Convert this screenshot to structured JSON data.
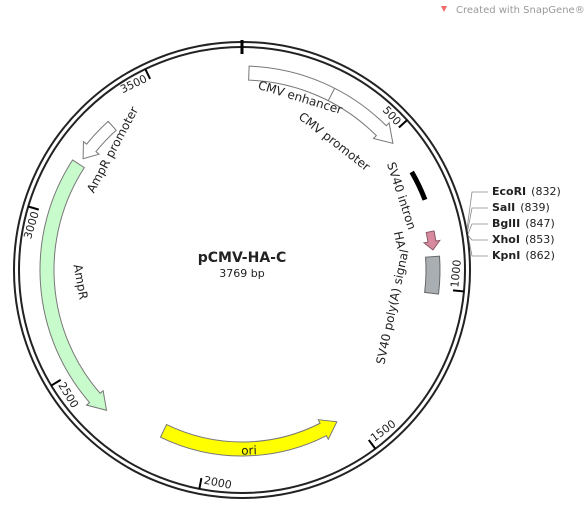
{
  "header": {
    "credit": "Created with SnapGene®"
  },
  "plasmid": {
    "name": "pCMV-HA-C",
    "length": {
      "value": 3769,
      "label": "3769 bp"
    },
    "ticks": [
      500,
      1000,
      1500,
      2000,
      2500,
      3000,
      3500
    ],
    "features": [
      "CMV enhancer",
      "CMV promoter",
      "SV40 intron",
      "HA",
      "SV40 poly(A) signal",
      "ori",
      "AmpR",
      "AmpR promoter"
    ],
    "sites": [
      {
        "name": "EcoRI",
        "position": {
          "value": 832,
          "label": "(832)"
        }
      },
      {
        "name": "SalI",
        "position": {
          "value": 839,
          "label": "(839)"
        }
      },
      {
        "name": "BglII",
        "position": {
          "value": 847,
          "label": "(847)"
        }
      },
      {
        "name": "XhoI",
        "position": {
          "value": 853,
          "label": "(853)"
        }
      },
      {
        "name": "KpnI",
        "position": {
          "value": 862,
          "label": "(862)"
        }
      }
    ]
  }
}
